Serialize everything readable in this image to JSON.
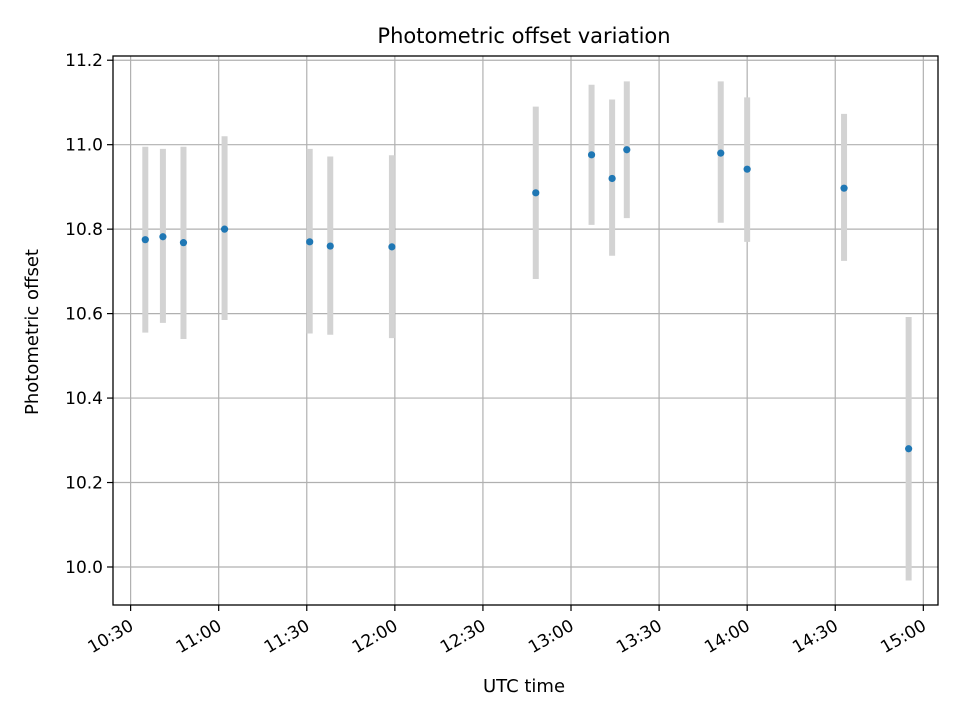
{
  "chart_data": {
    "type": "scatter",
    "title": "Photometric offset variation",
    "xlabel": "UTC time",
    "ylabel": "Photometric offset",
    "xlim": [
      "10:24",
      "15:05"
    ],
    "ylim": [
      9.91,
      11.21
    ],
    "x_ticks": [
      "10:30",
      "11:00",
      "11:30",
      "12:00",
      "12:30",
      "13:00",
      "13:30",
      "14:00",
      "14:30",
      "15:00"
    ],
    "y_ticks": [
      "10.0",
      "10.2",
      "10.4",
      "10.6",
      "10.8",
      "11.0",
      "11.2"
    ],
    "grid": true,
    "marker_color": "#1f77b4",
    "errorbar_color": "#d3d3d3",
    "points": [
      {
        "x": "10:35",
        "y": 10.775,
        "ylow": 10.555,
        "yhigh": 10.995
      },
      {
        "x": "10:41",
        "y": 10.782,
        "ylow": 10.578,
        "yhigh": 10.99
      },
      {
        "x": "10:48",
        "y": 10.768,
        "ylow": 10.54,
        "yhigh": 10.995
      },
      {
        "x": "11:02",
        "y": 10.8,
        "ylow": 10.585,
        "yhigh": 11.02
      },
      {
        "x": "11:31",
        "y": 10.77,
        "ylow": 10.553,
        "yhigh": 10.99
      },
      {
        "x": "11:38",
        "y": 10.76,
        "ylow": 10.55,
        "yhigh": 10.972
      },
      {
        "x": "11:59",
        "y": 10.758,
        "ylow": 10.542,
        "yhigh": 10.975
      },
      {
        "x": "12:48",
        "y": 10.886,
        "ylow": 10.682,
        "yhigh": 11.09
      },
      {
        "x": "13:07",
        "y": 10.976,
        "ylow": 10.81,
        "yhigh": 11.142
      },
      {
        "x": "13:14",
        "y": 10.92,
        "ylow": 10.737,
        "yhigh": 11.107
      },
      {
        "x": "13:19",
        "y": 10.988,
        "ylow": 10.826,
        "yhigh": 11.15
      },
      {
        "x": "13:51",
        "y": 10.98,
        "ylow": 10.815,
        "yhigh": 11.15
      },
      {
        "x": "14:00",
        "y": 10.942,
        "ylow": 10.77,
        "yhigh": 11.112
      },
      {
        "x": "14:33",
        "y": 10.897,
        "ylow": 10.725,
        "yhigh": 11.073
      },
      {
        "x": "14:55",
        "y": 10.28,
        "ylow": 9.968,
        "yhigh": 10.592
      }
    ]
  }
}
